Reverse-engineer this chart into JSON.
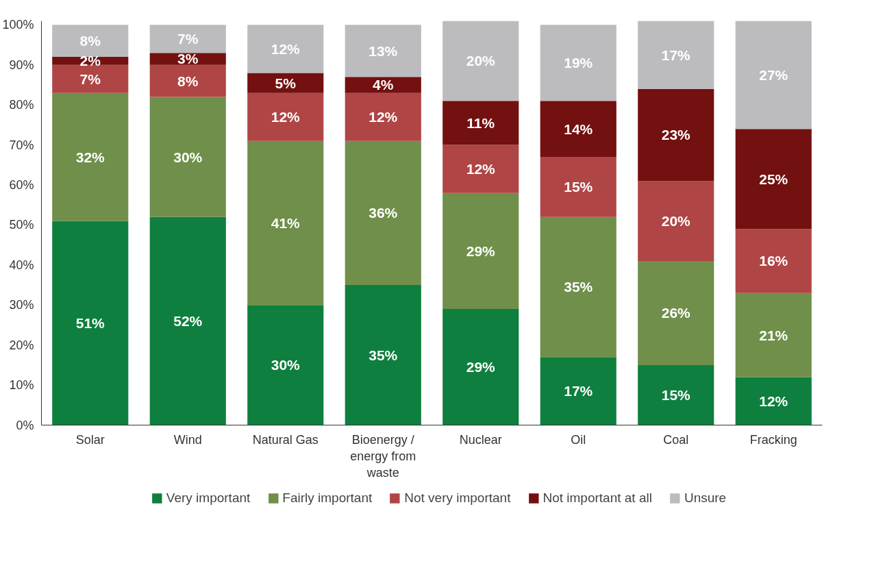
{
  "chart_data": {
    "type": "bar",
    "stacked": true,
    "categories": [
      "Solar",
      "Wind",
      "Natural Gas",
      "Bioenergy / energy from waste",
      "Nuclear",
      "Oil",
      "Coal",
      "Fracking"
    ],
    "series": [
      {
        "name": "Very important",
        "color": "#0e7f3e",
        "values": [
          51,
          52,
          30,
          35,
          29,
          17,
          15,
          12
        ],
        "value_labels": [
          "51%",
          "52%",
          "30%",
          "35%",
          "29%",
          "17%",
          "15%",
          "12%"
        ]
      },
      {
        "name": "Fairly important",
        "color": "#6f8f4a",
        "values": [
          32,
          30,
          41,
          36,
          29,
          35,
          26,
          21
        ],
        "value_labels": [
          "32%",
          "30%",
          "41%",
          "36%",
          "29%",
          "35%",
          "26%",
          "21%"
        ]
      },
      {
        "name": "Not very important",
        "color": "#b04545",
        "values": [
          7,
          8,
          12,
          12,
          12,
          15,
          20,
          16
        ],
        "value_labels": [
          "7%",
          "8%",
          "12%",
          "12%",
          "12%",
          "15%",
          "20%",
          "16%"
        ]
      },
      {
        "name": "Not important at all",
        "color": "#731010",
        "values": [
          2,
          3,
          5,
          4,
          11,
          14,
          23,
          25
        ],
        "value_labels": [
          "2%",
          "3%",
          "5%",
          "4%",
          "11%",
          "14%",
          "23%",
          "25%"
        ]
      },
      {
        "name": "Unsure",
        "color": "#bcbcbf",
        "values": [
          8,
          7,
          12,
          13,
          20,
          19,
          17,
          27
        ],
        "value_labels": [
          "8%",
          "7%",
          "12%",
          "13%",
          "20%",
          "19%",
          "17%",
          "27%"
        ]
      }
    ],
    "ylim": [
      0,
      101
    ],
    "yticks": [
      {
        "value": 0,
        "label": "0%"
      },
      {
        "value": 10,
        "label": "10%"
      },
      {
        "value": 20,
        "label": "20%"
      },
      {
        "value": 30,
        "label": "30%"
      },
      {
        "value": 40,
        "label": "40%"
      },
      {
        "value": 50,
        "label": "50%"
      },
      {
        "value": 60,
        "label": "60%"
      },
      {
        "value": 70,
        "label": "70%"
      },
      {
        "value": 80,
        "label": "80%"
      },
      {
        "value": 90,
        "label": "90%"
      },
      {
        "value": 100,
        "label": "100%"
      }
    ],
    "data_labels": true,
    "grid": false,
    "legend": "bottom"
  }
}
